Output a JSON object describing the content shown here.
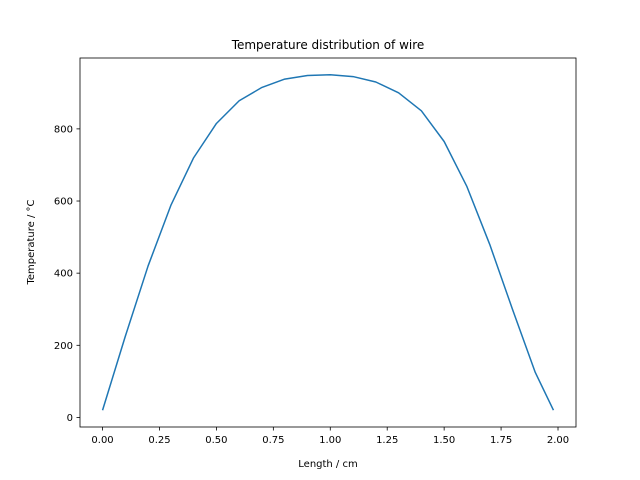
{
  "chart_data": {
    "type": "line",
    "title": "Temperature distribution of wire",
    "xlabel": "Length / cm",
    "ylabel": "Temperature / °C",
    "xlim": [
      -0.099,
      2.079
    ],
    "ylim": [
      -26.5,
      996.5
    ],
    "xticks": [
      0.0,
      0.25,
      0.5,
      0.75,
      1.0,
      1.25,
      1.5,
      1.75,
      2.0
    ],
    "xtick_labels": [
      "0.00",
      "0.25",
      "0.50",
      "0.75",
      "1.00",
      "1.25",
      "1.50",
      "1.75",
      "2.00"
    ],
    "yticks": [
      0,
      200,
      400,
      600,
      800
    ],
    "ytick_labels": [
      "0",
      "200",
      "400",
      "600",
      "800"
    ],
    "grid": false,
    "series": [
      {
        "color": "#1f77b4",
        "x": [
          0.0,
          0.1,
          0.2,
          0.3,
          0.4,
          0.5,
          0.6,
          0.7,
          0.8,
          0.9,
          1.0,
          1.1,
          1.2,
          1.3,
          1.4,
          1.5,
          1.6,
          1.7,
          1.8,
          1.9,
          1.98
        ],
        "y": [
          20,
          225,
          420,
          588,
          720,
          815,
          878,
          915,
          938,
          948,
          950,
          945,
          930,
          900,
          850,
          765,
          640,
          480,
          300,
          125,
          20
        ]
      }
    ]
  }
}
